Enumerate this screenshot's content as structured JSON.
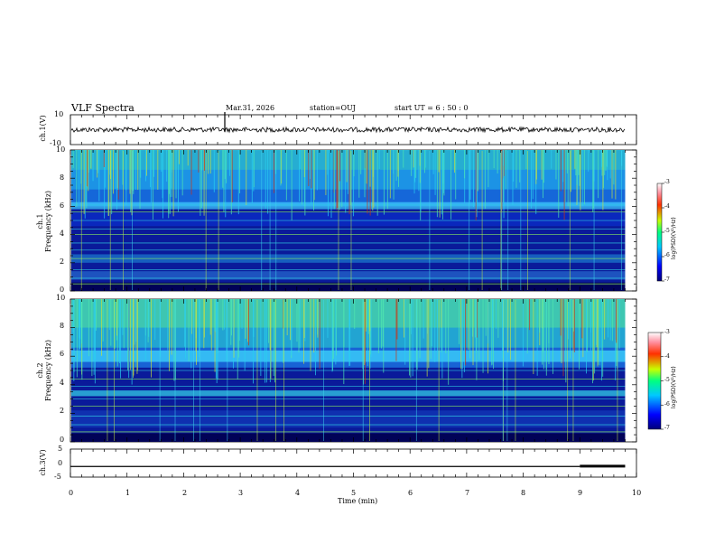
{
  "header": {
    "title": "VLF Spectra",
    "date": "Mar.31, 2026",
    "station": "station=OUJ",
    "start_ut": "start UT =  6 : 50 : 0"
  },
  "chart_data": [
    {
      "type": "line",
      "id": "ch1-waveform",
      "ylabel": "ch.1(V)",
      "ylim": [
        -10,
        10
      ],
      "y_ticks": [
        "10",
        "-10"
      ],
      "x_range_min": [
        0,
        10
      ],
      "baseline_value": 0,
      "noise_amplitude": 1
    },
    {
      "type": "heatmap",
      "id": "ch1-spectrogram",
      "ylabel": "ch.1\nFrequency (kHz)",
      "ylim_khz": [
        0,
        10
      ],
      "y_ticks": [
        "0",
        "2",
        "4",
        "6",
        "8",
        "10"
      ],
      "x_range_min": [
        0,
        10
      ],
      "data_end_min": 9.8,
      "colorbar": {
        "label": "log(PSD)(V²/Hz)",
        "range": [
          -7,
          -3
        ],
        "ticks": [
          "-3",
          "-4",
          "-5",
          "-6",
          "-7"
        ]
      }
    },
    {
      "type": "heatmap",
      "id": "ch2-spectrogram",
      "ylabel": "ch.2\nFrequency (kHz)",
      "ylim_khz": [
        0,
        10
      ],
      "y_ticks": [
        "0",
        "2",
        "4",
        "6",
        "8",
        "10"
      ],
      "x_range_min": [
        0,
        10
      ],
      "data_end_min": 9.8,
      "colorbar": {
        "label": "log(PSD)(V²/Hz)",
        "range": [
          -7,
          -3
        ],
        "ticks": [
          "-3",
          "-4",
          "-5",
          "-6",
          "-7"
        ]
      }
    },
    {
      "type": "line",
      "id": "ch3-signal",
      "ylabel": "ch.3(V)",
      "ylim": [
        -5,
        5
      ],
      "y_ticks": [
        "5",
        "0",
        "-5"
      ],
      "x_range_min": [
        0,
        10
      ],
      "segments": [
        {
          "x0": 0,
          "x1": 9.0,
          "value": -1.2
        },
        {
          "x0": 9.0,
          "x1": 9.8,
          "value": -1.1
        }
      ],
      "xlabel": "Time (min)",
      "x_ticks": [
        "0",
        "1",
        "2",
        "3",
        "4",
        "5",
        "6",
        "7",
        "8",
        "9",
        "10"
      ]
    }
  ]
}
